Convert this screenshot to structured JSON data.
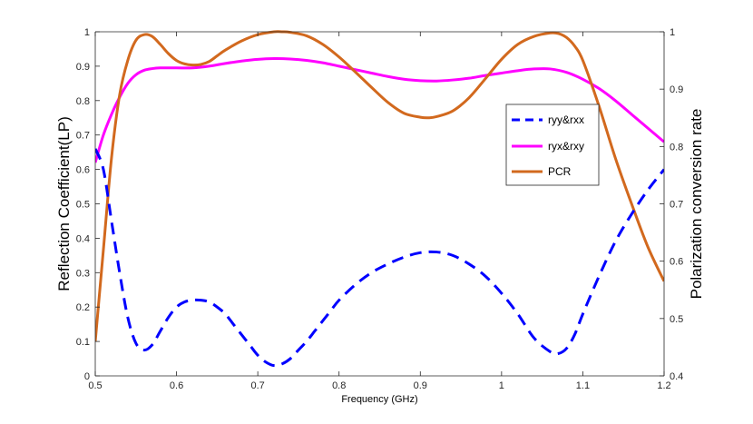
{
  "chart_data": {
    "type": "line",
    "title": "",
    "xlabel": "Frequency (GHz)",
    "ylabel_left": "Reflection Coefficient(LP)",
    "ylabel_right": "Polarization conversion rate",
    "xlim": [
      0.5,
      1.2
    ],
    "ylim_left": [
      0,
      1
    ],
    "ylim_right": [
      0.4,
      1
    ],
    "x_ticks": [
      "0.5",
      "0.6",
      "0.7",
      "0.8",
      "0.9",
      "1",
      "1.1",
      "1.2"
    ],
    "y_left_ticks": [
      "0",
      "0.1",
      "0.2",
      "0.3",
      "0.4",
      "0.5",
      "0.6",
      "0.7",
      "0.8",
      "0.9",
      "1"
    ],
    "y_right_ticks": [
      "0.4",
      "0.5",
      "0.6",
      "0.7",
      "0.8",
      "0.9",
      "1"
    ],
    "grid": false,
    "legend_position": "right",
    "series": [
      {
        "name": "ryy&rxx",
        "axis": "left",
        "color": "#0000ff",
        "style": "dashed",
        "x": [
          0.5,
          0.51,
          0.52,
          0.53,
          0.54,
          0.55,
          0.56,
          0.57,
          0.58,
          0.59,
          0.6,
          0.61,
          0.62,
          0.63,
          0.64,
          0.65,
          0.66,
          0.67,
          0.68,
          0.69,
          0.7,
          0.71,
          0.72,
          0.73,
          0.74,
          0.75,
          0.76,
          0.77,
          0.78,
          0.79,
          0.8,
          0.82,
          0.84,
          0.86,
          0.88,
          0.9,
          0.92,
          0.94,
          0.96,
          0.98,
          1.0,
          1.02,
          1.04,
          1.06,
          1.07,
          1.08,
          1.09,
          1.1,
          1.12,
          1.14,
          1.16,
          1.18,
          1.2
        ],
        "y": [
          0.66,
          0.6,
          0.45,
          0.3,
          0.17,
          0.095,
          0.075,
          0.09,
          0.13,
          0.17,
          0.2,
          0.215,
          0.22,
          0.22,
          0.215,
          0.2,
          0.18,
          0.15,
          0.12,
          0.09,
          0.06,
          0.04,
          0.03,
          0.035,
          0.05,
          0.075,
          0.1,
          0.13,
          0.16,
          0.19,
          0.22,
          0.265,
          0.3,
          0.325,
          0.345,
          0.358,
          0.36,
          0.35,
          0.325,
          0.29,
          0.24,
          0.18,
          0.11,
          0.07,
          0.065,
          0.08,
          0.12,
          0.18,
          0.29,
          0.39,
          0.47,
          0.54,
          0.6
        ]
      },
      {
        "name": "ryx&rxy",
        "axis": "left",
        "color": "#ff00ff",
        "style": "solid",
        "x": [
          0.5,
          0.51,
          0.52,
          0.53,
          0.54,
          0.55,
          0.56,
          0.57,
          0.58,
          0.6,
          0.62,
          0.64,
          0.66,
          0.68,
          0.7,
          0.72,
          0.74,
          0.76,
          0.78,
          0.8,
          0.82,
          0.84,
          0.86,
          0.88,
          0.9,
          0.92,
          0.94,
          0.96,
          0.98,
          1.0,
          1.02,
          1.04,
          1.06,
          1.08,
          1.1,
          1.12,
          1.14,
          1.16,
          1.18,
          1.2
        ],
        "y": [
          0.62,
          0.7,
          0.76,
          0.81,
          0.85,
          0.875,
          0.888,
          0.893,
          0.895,
          0.895,
          0.895,
          0.9,
          0.908,
          0.915,
          0.92,
          0.922,
          0.921,
          0.917,
          0.91,
          0.9,
          0.89,
          0.88,
          0.87,
          0.862,
          0.858,
          0.857,
          0.86,
          0.865,
          0.873,
          0.88,
          0.887,
          0.892,
          0.892,
          0.882,
          0.862,
          0.835,
          0.8,
          0.76,
          0.72,
          0.68
        ]
      },
      {
        "name": "PCR",
        "axis": "right",
        "color": "#d2691e",
        "style": "solid",
        "x": [
          0.5,
          0.51,
          0.52,
          0.53,
          0.54,
          0.55,
          0.56,
          0.57,
          0.58,
          0.59,
          0.6,
          0.61,
          0.62,
          0.63,
          0.64,
          0.65,
          0.66,
          0.68,
          0.7,
          0.72,
          0.73,
          0.74,
          0.76,
          0.78,
          0.8,
          0.82,
          0.84,
          0.86,
          0.88,
          0.9,
          0.91,
          0.92,
          0.94,
          0.96,
          0.98,
          1.0,
          1.02,
          1.04,
          1.06,
          1.07,
          1.08,
          1.09,
          1.1,
          1.12,
          1.14,
          1.16,
          1.18,
          1.2
        ],
        "y": [
          0.46,
          0.62,
          0.78,
          0.89,
          0.95,
          0.985,
          0.995,
          0.992,
          0.978,
          0.962,
          0.95,
          0.944,
          0.942,
          0.943,
          0.948,
          0.958,
          0.968,
          0.984,
          0.995,
          1.0,
          1.0,
          0.999,
          0.993,
          0.978,
          0.956,
          0.93,
          0.903,
          0.877,
          0.858,
          0.851,
          0.85,
          0.852,
          0.862,
          0.885,
          0.918,
          0.952,
          0.978,
          0.992,
          0.998,
          0.997,
          0.99,
          0.975,
          0.95,
          0.87,
          0.78,
          0.7,
          0.625,
          0.565
        ]
      }
    ]
  }
}
